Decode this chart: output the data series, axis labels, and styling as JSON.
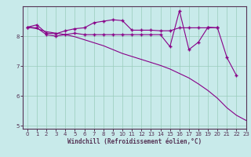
{
  "line1_x": [
    0,
    1,
    2,
    3,
    4,
    5,
    6,
    7,
    8,
    9,
    10,
    11,
    12,
    13,
    14,
    15,
    16,
    17,
    18,
    19,
    20
  ],
  "line1_y": [
    8.3,
    8.38,
    8.1,
    8.08,
    8.18,
    8.25,
    8.28,
    8.45,
    8.5,
    8.55,
    8.52,
    8.2,
    8.2,
    8.2,
    8.18,
    8.18,
    8.28,
    8.28,
    8.28,
    8.28,
    8.28
  ],
  "line2_x": [
    0,
    1,
    2,
    3,
    4,
    5,
    6,
    7,
    8,
    9,
    10,
    11,
    12,
    13,
    14,
    15,
    16,
    17,
    18,
    19,
    20,
    21,
    22
  ],
  "line2_y": [
    8.3,
    8.28,
    8.05,
    8.0,
    8.05,
    8.1,
    8.05,
    8.05,
    8.05,
    8.05,
    8.05,
    8.05,
    8.05,
    8.05,
    8.05,
    7.65,
    8.85,
    7.55,
    7.8,
    8.3,
    8.28,
    7.28,
    6.68
  ],
  "line3_x": [
    0,
    1,
    2,
    3,
    4,
    5,
    6,
    7,
    8,
    9,
    10,
    11,
    12,
    13,
    14,
    15,
    16,
    17,
    18,
    19,
    20,
    21,
    22,
    23
  ],
  "line3_y": [
    8.3,
    8.25,
    8.15,
    8.1,
    8.05,
    7.98,
    7.88,
    7.78,
    7.68,
    7.55,
    7.42,
    7.32,
    7.22,
    7.12,
    7.02,
    6.9,
    6.75,
    6.6,
    6.4,
    6.18,
    5.92,
    5.6,
    5.35,
    5.18
  ],
  "line_color": "#880088",
  "bg_color": "#c8eaea",
  "plot_bg": "#c8eaea",
  "grid_color": "#99ccbb",
  "border_color": "#553355",
  "xlabel": "Windchill (Refroidissement éolien,°C)",
  "xlim": [
    -0.5,
    23
  ],
  "ylim": [
    4.9,
    9.0
  ],
  "yticks": [
    5,
    6,
    7,
    8
  ],
  "xticks": [
    0,
    1,
    2,
    3,
    4,
    5,
    6,
    7,
    8,
    9,
    10,
    11,
    12,
    13,
    14,
    15,
    16,
    17,
    18,
    19,
    20,
    21,
    22,
    23
  ],
  "xlabel_fontsize": 5.5,
  "tick_fontsize": 5,
  "tick_color": "#553355"
}
